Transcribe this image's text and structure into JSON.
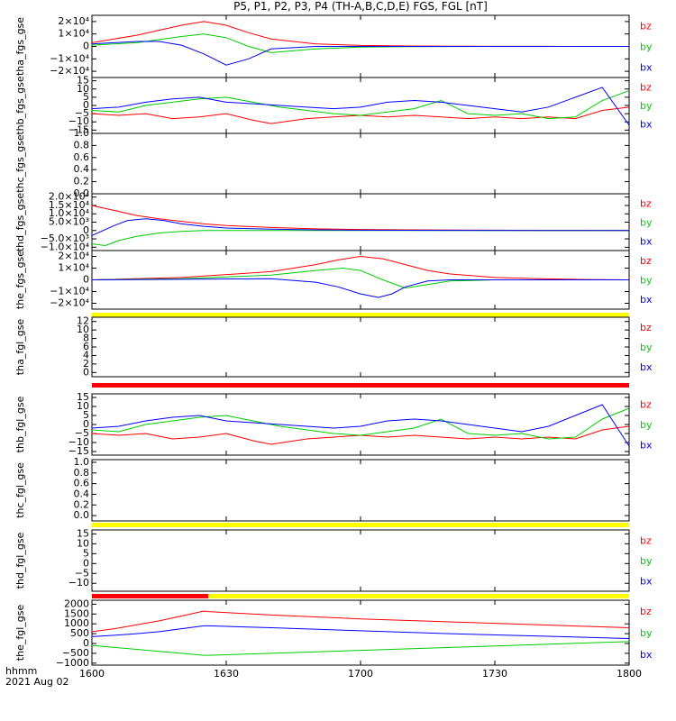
{
  "title": "P5, P1, P2, P3, P4 (TH-A,B,C,D,E) FGS, FGL [nT]",
  "x_axis": {
    "ticks": [
      "1600",
      "1630",
      "1700",
      "1730",
      "1800"
    ],
    "corner_label_1": "hhmm",
    "corner_label_2": "2021 Aug 02"
  },
  "colors": {
    "bz": "#ff0000",
    "by": "#00cc00",
    "bx": "#0000ff",
    "axis": "#000000",
    "yellow": "#ffff00",
    "red": "#ff0000"
  },
  "chart_data": [
    {
      "type": "line",
      "ylabel": "tha_fgs_gse",
      "ylim": [
        -25000,
        25000
      ],
      "yticks": [
        [
          "2×10⁴",
          20000
        ],
        [
          "1×10⁴",
          10000
        ],
        [
          "0",
          0
        ],
        [
          "−1×10⁴",
          -10000
        ],
        [
          "−2×10⁴",
          -20000
        ]
      ],
      "legend": [
        "bz",
        "by",
        "bx"
      ],
      "series": [
        {
          "name": "bz",
          "x": [
            0,
            10,
            20,
            25,
            30,
            35,
            40,
            50,
            60,
            70,
            80,
            90,
            100,
            120
          ],
          "y": [
            3000,
            9000,
            17000,
            20000,
            17000,
            11000,
            6000,
            2000,
            800,
            400,
            200,
            100,
            50,
            0
          ]
        },
        {
          "name": "by",
          "x": [
            0,
            10,
            20,
            25,
            30,
            35,
            40,
            50,
            60,
            70,
            80,
            90,
            100,
            120
          ],
          "y": [
            1000,
            3000,
            8000,
            10000,
            7000,
            0,
            -5000,
            -2000,
            -500,
            -200,
            -100,
            0,
            0,
            0
          ]
        },
        {
          "name": "bx",
          "x": [
            0,
            10,
            15,
            20,
            25,
            30,
            35,
            40,
            50,
            60,
            70,
            80,
            90,
            100,
            120
          ],
          "y": [
            2000,
            4000,
            4000,
            1000,
            -6000,
            -15000,
            -10000,
            -2000,
            0,
            0,
            0,
            0,
            0,
            0,
            0
          ]
        }
      ]
    },
    {
      "type": "line",
      "ylabel": "thb_fgs_gse",
      "ylim": [
        -17,
        17
      ],
      "yticks": [
        [
          "15",
          15
        ],
        [
          "10",
          10
        ],
        [
          "5",
          5
        ],
        [
          "0",
          0
        ],
        [
          "−5",
          -5
        ],
        [
          "−10",
          -10
        ],
        [
          "−15",
          -15
        ]
      ],
      "legend": [
        "bz",
        "by",
        "bx"
      ],
      "series": [
        {
          "name": "bz",
          "x": [
            0,
            6,
            12,
            18,
            24,
            30,
            36,
            40,
            48,
            54,
            60,
            66,
            72,
            78,
            84,
            90,
            96,
            102,
            108,
            114,
            120
          ],
          "y": [
            -5,
            -6,
            -5,
            -8,
            -7,
            -5,
            -9,
            -11,
            -8,
            -7,
            -6,
            -7,
            -6,
            -7,
            -8,
            -7,
            -8,
            -7,
            -8,
            -3,
            -1
          ]
        },
        {
          "name": "by",
          "x": [
            0,
            6,
            12,
            18,
            24,
            30,
            36,
            42,
            48,
            54,
            60,
            66,
            72,
            78,
            84,
            90,
            96,
            102,
            108,
            114,
            120
          ],
          "y": [
            -3,
            -4,
            0,
            2,
            4,
            5,
            2,
            -1,
            -3,
            -5,
            -6,
            -4,
            -2,
            3,
            -5,
            -6,
            -5,
            -8,
            -7,
            3,
            9
          ]
        },
        {
          "name": "bx",
          "x": [
            0,
            6,
            12,
            18,
            24,
            30,
            36,
            42,
            48,
            54,
            60,
            66,
            72,
            78,
            84,
            90,
            96,
            102,
            108,
            114,
            120
          ],
          "y": [
            -2,
            -1,
            2,
            4,
            5,
            2,
            1,
            0,
            -1,
            -2,
            -1,
            2,
            3,
            2,
            0,
            -2,
            -4,
            -1,
            5,
            11,
            -12
          ]
        }
      ]
    },
    {
      "type": "line",
      "ylabel": "thc_fgs_gse",
      "ylim": [
        0,
        1
      ],
      "yticks": [
        [
          "1.0",
          1
        ],
        [
          "0.8",
          0.8
        ],
        [
          "0.6",
          0.6
        ],
        [
          "0.4",
          0.4
        ],
        [
          "0.2",
          0.2
        ],
        [
          "0.0",
          0
        ]
      ],
      "legend": [],
      "series": []
    },
    {
      "type": "line",
      "ylabel": "thd_fgs_gse",
      "ylim": [
        -12000,
        22000
      ],
      "yticks": [
        [
          "2.0×10⁴",
          20000
        ],
        [
          "1.5×10⁴",
          15000
        ],
        [
          "1.0×10⁴",
          10000
        ],
        [
          "5.0×10³",
          5000
        ],
        [
          "0",
          0
        ],
        [
          "−5.0×10³",
          -5000
        ],
        [
          "−1.0×10⁴",
          -10000
        ]
      ],
      "legend": [
        "bz",
        "by",
        "bx"
      ],
      "series": [
        {
          "name": "bz",
          "x": [
            0,
            5,
            10,
            15,
            20,
            25,
            30,
            40,
            50,
            60,
            70,
            80,
            90,
            100,
            120
          ],
          "y": [
            15000,
            12000,
            9000,
            7000,
            5500,
            4000,
            3000,
            1800,
            1000,
            600,
            400,
            300,
            200,
            100,
            0
          ]
        },
        {
          "name": "by",
          "x": [
            0,
            3,
            6,
            10,
            15,
            20,
            25,
            30,
            40,
            50,
            60,
            80,
            100,
            120
          ],
          "y": [
            -8000,
            -9000,
            -6000,
            -3500,
            -1500,
            -500,
            0,
            0,
            0,
            0,
            0,
            0,
            0,
            0
          ]
        },
        {
          "name": "bx",
          "x": [
            0,
            5,
            8,
            12,
            16,
            20,
            25,
            30,
            40,
            50,
            60,
            80,
            100,
            120
          ],
          "y": [
            -3000,
            3000,
            6000,
            7000,
            6000,
            4000,
            2500,
            1500,
            800,
            400,
            200,
            100,
            0,
            0
          ]
        }
      ]
    },
    {
      "type": "line",
      "ylabel": "the_fgs_gse",
      "ylim": [
        -25000,
        25000
      ],
      "yticks": [
        [
          "2×10⁴",
          20000
        ],
        [
          "1×10⁴",
          10000
        ],
        [
          "0",
          0
        ],
        [
          "−1×10⁴",
          -10000
        ],
        [
          "−2×10⁴",
          -20000
        ]
      ],
      "legend": [
        "bz",
        "by",
        "bx"
      ],
      "series": [
        {
          "name": "bz",
          "x": [
            0,
            20,
            40,
            50,
            55,
            60,
            65,
            70,
            75,
            80,
            90,
            100,
            110,
            120
          ],
          "y": [
            0,
            2000,
            7000,
            13000,
            17000,
            20000,
            18000,
            13000,
            8000,
            5000,
            2000,
            1000,
            300,
            0
          ]
        },
        {
          "name": "by",
          "x": [
            0,
            20,
            40,
            50,
            56,
            60,
            65,
            70,
            75,
            80,
            90,
            100,
            110,
            120
          ],
          "y": [
            0,
            1000,
            4000,
            8000,
            10000,
            8000,
            0,
            -7000,
            -4000,
            -1000,
            0,
            0,
            0,
            0
          ]
        },
        {
          "name": "bx",
          "x": [
            0,
            20,
            40,
            50,
            55,
            60,
            64,
            67,
            70,
            75,
            80,
            90,
            100,
            120
          ],
          "y": [
            0,
            500,
            1000,
            -2000,
            -6000,
            -12000,
            -15000,
            -12000,
            -6000,
            -1000,
            0,
            0,
            0,
            0
          ]
        }
      ]
    },
    {
      "type": "line",
      "ylabel": "tha_fgl_gse",
      "ylim": [
        -1,
        13
      ],
      "yticks": [
        [
          "12",
          12
        ],
        [
          "10",
          10
        ],
        [
          "8",
          8
        ],
        [
          "6",
          6
        ],
        [
          "4",
          4
        ],
        [
          "2",
          2
        ],
        [
          "0",
          0
        ]
      ],
      "legend": [
        "bz",
        "by",
        "bx"
      ],
      "series": []
    },
    {
      "type": "line",
      "ylabel": "thb_fgl_gse",
      "ylim": [
        -17,
        17
      ],
      "yticks": [
        [
          "15",
          15
        ],
        [
          "10",
          10
        ],
        [
          "5",
          5
        ],
        [
          "0",
          0
        ],
        [
          "−5",
          -5
        ],
        [
          "−10",
          -10
        ],
        [
          "−15",
          -15
        ]
      ],
      "legend": [
        "bz",
        "by",
        "bx"
      ],
      "series": [
        {
          "name": "bz",
          "x": [
            0,
            6,
            12,
            18,
            24,
            30,
            36,
            40,
            48,
            54,
            60,
            66,
            72,
            78,
            84,
            90,
            96,
            102,
            108,
            114,
            120
          ],
          "y": [
            -5,
            -6,
            -5,
            -8,
            -7,
            -5,
            -9,
            -11,
            -8,
            -7,
            -6,
            -7,
            -6,
            -7,
            -8,
            -7,
            -8,
            -7,
            -8,
            -3,
            -1
          ]
        },
        {
          "name": "by",
          "x": [
            0,
            6,
            12,
            18,
            24,
            30,
            36,
            42,
            48,
            54,
            60,
            66,
            72,
            78,
            84,
            90,
            96,
            102,
            108,
            114,
            120
          ],
          "y": [
            -3,
            -4,
            0,
            2,
            4,
            5,
            2,
            -1,
            -3,
            -5,
            -6,
            -4,
            -2,
            3,
            -5,
            -6,
            -5,
            -8,
            -7,
            3,
            9
          ]
        },
        {
          "name": "bx",
          "x": [
            0,
            6,
            12,
            18,
            24,
            30,
            36,
            42,
            48,
            54,
            60,
            66,
            72,
            78,
            84,
            90,
            96,
            102,
            108,
            114,
            120
          ],
          "y": [
            -2,
            -1,
            2,
            4,
            5,
            2,
            1,
            0,
            -1,
            -2,
            -1,
            2,
            3,
            2,
            0,
            -2,
            -4,
            -1,
            5,
            11,
            -12
          ]
        }
      ]
    },
    {
      "type": "line",
      "ylabel": "thc_fgl_gse",
      "ylim": [
        -0.1,
        1.05
      ],
      "yticks": [
        [
          "1.0",
          1
        ],
        [
          "0.8",
          0.8
        ],
        [
          "0.6",
          0.6
        ],
        [
          "0.4",
          0.4
        ],
        [
          "0.2",
          0.2
        ],
        [
          "0.0",
          0
        ]
      ],
      "legend": [],
      "series": []
    },
    {
      "type": "line",
      "ylabel": "thd_fgl_gse",
      "ylim": [
        -14,
        17
      ],
      "yticks": [
        [
          "15",
          15
        ],
        [
          "10",
          10
        ],
        [
          "5",
          5
        ],
        [
          "0",
          0
        ],
        [
          "−5",
          -5
        ],
        [
          "−10",
          -10
        ]
      ],
      "legend": [
        "bz",
        "by",
        "bx"
      ],
      "series": []
    },
    {
      "type": "line",
      "ylabel": "the_fgl_gse",
      "ylim": [
        -1100,
        2200
      ],
      "yticks": [
        [
          "2000",
          2000
        ],
        [
          "1500",
          1500
        ],
        [
          "1000",
          1000
        ],
        [
          "500",
          500
        ],
        [
          "0",
          0
        ],
        [
          "−500",
          -500
        ],
        [
          "−1000",
          -1000
        ]
      ],
      "legend": [
        "bz",
        "by",
        "bx"
      ],
      "series": [
        {
          "name": "bz",
          "x": [
            0,
            5,
            10,
            15,
            20,
            25,
            26,
            40,
            60,
            80,
            100,
            120
          ],
          "y": [
            600,
            750,
            950,
            1150,
            1400,
            1650,
            1620,
            1450,
            1250,
            1100,
            950,
            800
          ]
        },
        {
          "name": "by",
          "x": [
            0,
            5,
            10,
            15,
            20,
            25,
            26,
            40,
            60,
            80,
            100,
            120
          ],
          "y": [
            -100,
            -200,
            -300,
            -400,
            -500,
            -600,
            -600,
            -500,
            -350,
            -200,
            -50,
            100
          ]
        },
        {
          "name": "bx",
          "x": [
            0,
            5,
            10,
            15,
            20,
            25,
            26,
            40,
            60,
            80,
            100,
            120
          ],
          "y": [
            350,
            420,
            500,
            600,
            750,
            900,
            900,
            800,
            650,
            500,
            380,
            250
          ]
        }
      ]
    }
  ]
}
